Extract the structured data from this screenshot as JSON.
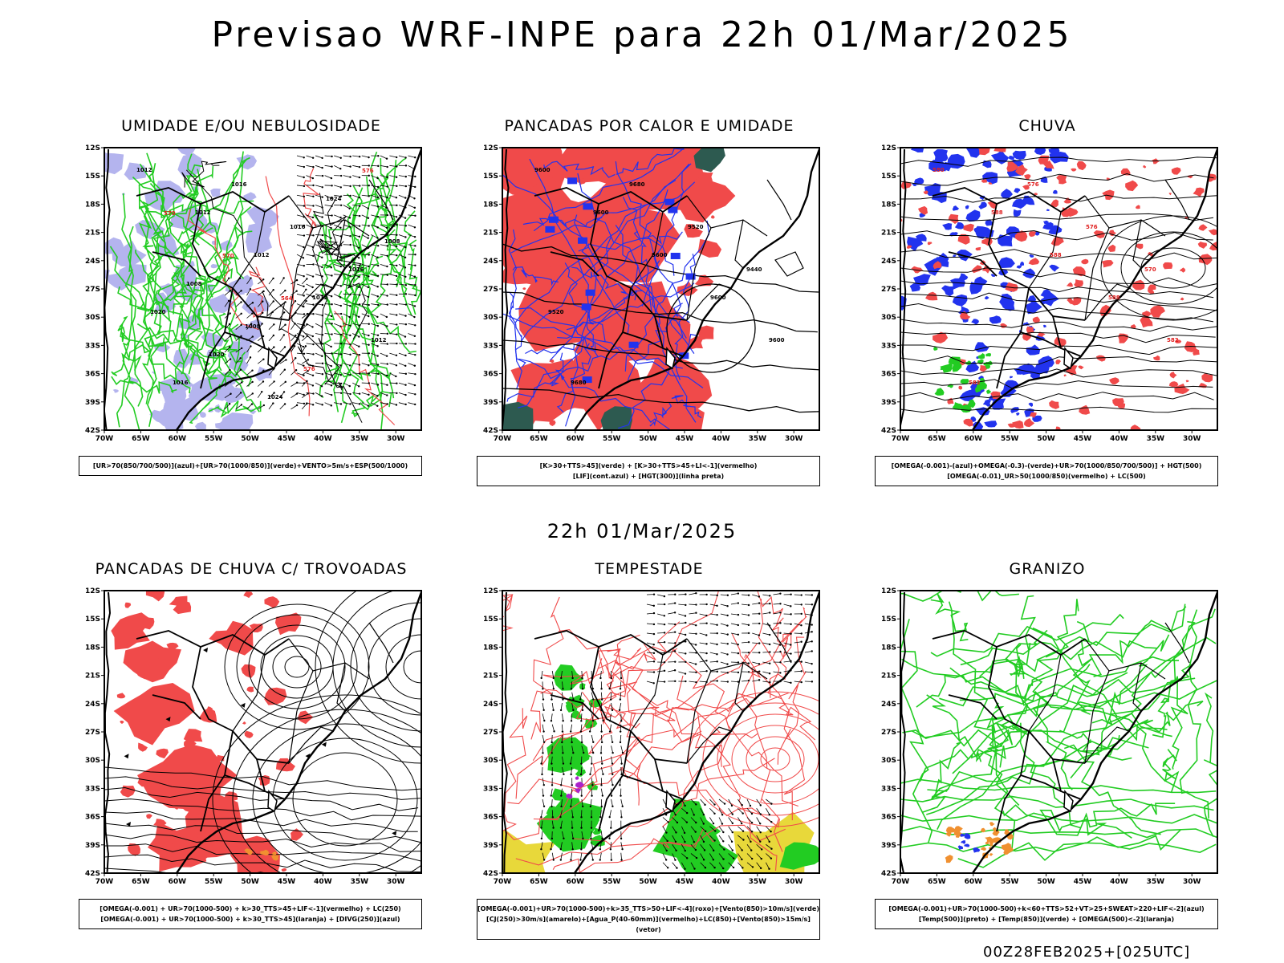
{
  "title": "Previsao WRF-INPE  para 22h 01/Mar/2025",
  "mid_title": "22h 01/Mar/2025",
  "footer": "00Z28FEB2025+[025UTC]",
  "axes": {
    "lat_labels": [
      "12S",
      "15S",
      "18S",
      "21S",
      "24S",
      "27S",
      "30S",
      "33S",
      "36S",
      "39S",
      "42S"
    ],
    "lon_labels": [
      "70W",
      "65W",
      "60W",
      "55W",
      "50W",
      "45W",
      "40W",
      "35W",
      "30W"
    ]
  },
  "colors": {
    "red": "#f04a4a",
    "green": "#22cc22",
    "blue": "#2233ee",
    "lavender": "#b4b4ee",
    "darkteal": "#2d5a50",
    "yellow": "#e8d83a",
    "orange": "#f09030",
    "purple": "#aa22cc"
  },
  "panels": [
    {
      "title": "UMIDADE E/OU NEBULOSIDADE",
      "legend": [
        "[UR>70(850/700/500)](azul)+[UR>70(1000/850)](verde)+VENTO>5m/s+ESP(500/1000)"
      ],
      "labels": [
        "1012",
        "1012",
        "1012",
        "1012",
        "1012",
        "1016",
        "1016",
        "1016",
        "1016",
        "1020",
        "1020",
        "1024",
        "1024",
        "1008",
        "1008",
        "1008",
        "576",
        "576",
        "570",
        "570",
        "564"
      ]
    },
    {
      "title": "PANCADAS POR CALOR E UMIDADE",
      "legend": [
        "[K>30+TTS>45](verde) + [K>30+TTS>45+LI<-1](vermelho)",
        "[LIF](cont.azul) + [HGT(300)](linha preta)"
      ],
      "labels": [
        "9600",
        "9600",
        "9600",
        "9600",
        "9600",
        "9680",
        "9680",
        "9520",
        "9440",
        "9520"
      ]
    },
    {
      "title": "CHUVA",
      "legend": [
        "[OMEGA(-0.001)-(azul)+OMEGA(-0.3)-(verde)+UR>70(1000/850/700/500)] + HGT(500)",
        "[OMEGA(-0.01)_UR>50(1000/850)(vermelho) + LC(500)"
      ],
      "labels": [
        "580",
        "588",
        "588",
        "588",
        "582",
        "582",
        "576",
        "576",
        "570"
      ]
    },
    {
      "title": "PANCADAS DE CHUVA C/ TROVOADAS",
      "legend": [
        "[OMEGA(-0.001) + UR>70(1000-500) + k>30_TTS>45+LIF<-1](vermelho) + LC(250)",
        "[OMEGA(-0.001) + UR>70(1000-500) + k>30_TTS>45](laranja) + [DIVG(250)](azul)"
      ],
      "labels": []
    },
    {
      "title": "TEMPESTADE",
      "legend": [
        "[OMEGA(-0.001)+UR>70(1000-500)+k>35_TTS>50+LIF<-4](roxo)+[Vento(850)>10m/s](verde)",
        "[CJ(250)>30m/s](amarelo)+[Agua_P(40-60mm)](vermelho)+LC(850)+[Vento(850)>15m/s](vetor)"
      ],
      "labels": []
    },
    {
      "title": "GRANIZO",
      "legend": [
        "[OMEGA(-0.001)+UR>70(1000-500)+k<60+TTS>52+VT>25+SWEAT>220+LIF<-2](azul)",
        "[Temp(500)](preto) + [Temp(850)](verde) + [OMEGA(500)<-2](laranja)"
      ],
      "labels": []
    }
  ]
}
